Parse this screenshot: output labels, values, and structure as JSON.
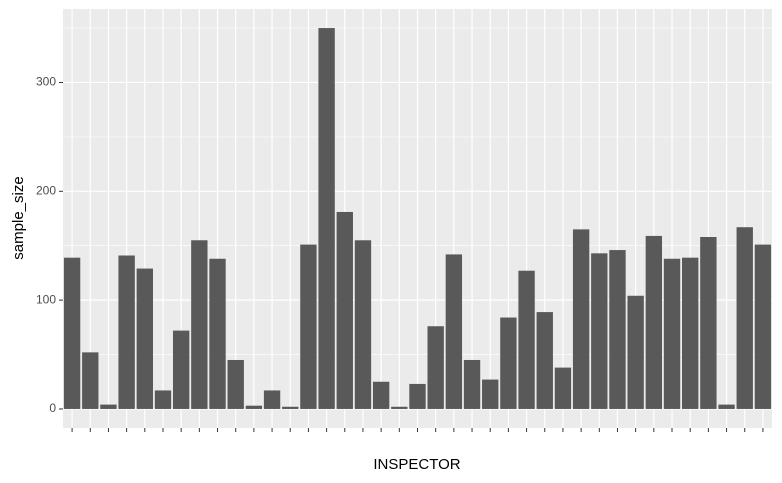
{
  "chart_data": {
    "type": "bar",
    "x_label": "INSPECTOR",
    "y_label": "sample_size",
    "categories": [
      null,
      null,
      null,
      null,
      null,
      null,
      null,
      null,
      null,
      null,
      null,
      null,
      null,
      null,
      null,
      null,
      null,
      null,
      null,
      null,
      null,
      null,
      null,
      null,
      null,
      null,
      null,
      null,
      null,
      null,
      null,
      null,
      null,
      null,
      null,
      null,
      null,
      null,
      null
    ],
    "values": [
      139,
      52,
      4,
      141,
      129,
      17,
      72,
      155,
      138,
      45,
      3,
      17,
      2,
      151,
      350,
      181,
      155,
      25,
      2,
      23,
      76,
      142,
      45,
      27,
      84,
      127,
      89,
      38,
      165,
      143,
      146,
      104,
      159,
      138,
      139,
      158,
      4,
      167,
      151
    ],
    "color": "#595959",
    "ylim": [
      -17.5,
      367.5
    ],
    "yticks": [
      0,
      100,
      200,
      300
    ],
    "y_minor_ticks": [
      50,
      150,
      250,
      350
    ],
    "grid": true
  }
}
